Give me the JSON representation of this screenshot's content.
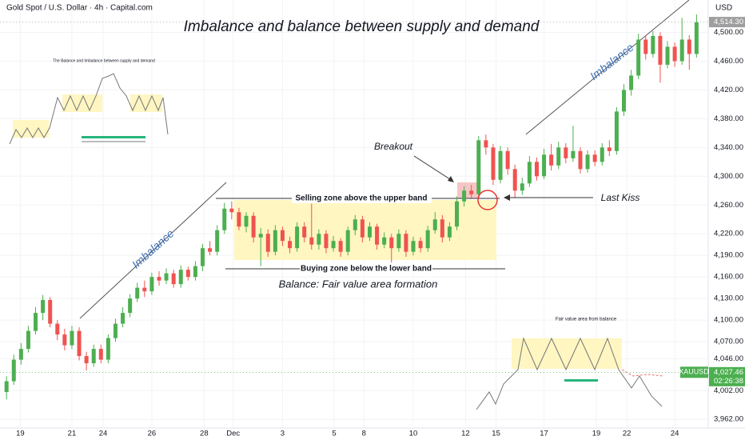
{
  "chart_data": {
    "type": "candlestick",
    "header": "Gold Spot / U.S. Dollar · 4h · Capital.com",
    "currency": "USD",
    "title": "Imbalance and balance between supply and demand",
    "annotations": {
      "selling": "Selling zone above the upper band",
      "buying": "Buying zone below the lower band",
      "balance": "Balance: Fair value area formation",
      "breakout": "Breakout",
      "last_kiss": "Last Kiss",
      "imbalance_1": "Imbalance",
      "imbalance_2": "Imbalance",
      "inset_top": "The Balance and Imbalance between supply and demand",
      "inset_bottom": "Fair value area from balance"
    },
    "up_color": "#4caf50",
    "down_color": "#ef5350",
    "xlim": [
      -0.9,
      96.5
    ],
    "xticks": [
      {
        "value": 1.9,
        "label": "19"
      },
      {
        "value": 9.0,
        "label": "21"
      },
      {
        "value": 13.3,
        "label": "24"
      },
      {
        "value": 20.0,
        "label": "26"
      },
      {
        "value": 27.2,
        "label": "28"
      },
      {
        "value": 31.2,
        "label": "Dec"
      },
      {
        "value": 38.0,
        "label": "3"
      },
      {
        "value": 45.1,
        "label": "5"
      },
      {
        "value": 49.2,
        "label": "8"
      },
      {
        "value": 56.0,
        "label": "10"
      },
      {
        "value": 63.2,
        "label": "12"
      },
      {
        "value": 67.4,
        "label": "15"
      },
      {
        "value": 74.0,
        "label": "17"
      },
      {
        "value": 81.2,
        "label": "19"
      },
      {
        "value": 85.4,
        "label": "22"
      },
      {
        "value": 92.0,
        "label": "24"
      }
    ],
    "ylim": [
      3950,
      4545
    ],
    "yticks": [
      {
        "value": 3962,
        "label": "3,962.00"
      },
      {
        "value": 4002,
        "label": "4,002.00"
      },
      {
        "value": 4046,
        "label": "4,046.00"
      },
      {
        "value": 4070,
        "label": "4,070.00"
      },
      {
        "value": 4100,
        "label": "4,100.00"
      },
      {
        "value": 4130,
        "label": "4,130.00"
      },
      {
        "value": 4160,
        "label": "4,160.00"
      },
      {
        "value": 4190,
        "label": "4,190.00"
      },
      {
        "value": 4220,
        "label": "4,220.00"
      },
      {
        "value": 4260,
        "label": "4,260.00"
      },
      {
        "value": 4300,
        "label": "4,300.00"
      },
      {
        "value": 4340,
        "label": "4,340.00"
      },
      {
        "value": 4380,
        "label": "4,380.00"
      },
      {
        "value": 4420,
        "label": "4,420.00"
      },
      {
        "value": 4460,
        "label": "4,460.00"
      },
      {
        "value": 4500,
        "label": "4,500.00"
      }
    ],
    "price_tags": [
      {
        "value": 4514.3,
        "label": "4,514.30",
        "color": "#9e9e9e"
      },
      {
        "name": "XAUUSD",
        "value": 4027.46,
        "label": "4,027.46",
        "timer": "02:26:38",
        "color": "#4caf50"
      }
    ],
    "candles": {
      "open": [
        4000,
        4015,
        4045,
        4060,
        4085,
        4110,
        4128,
        4095,
        4080,
        4065,
        4085,
        4050,
        4040,
        4060,
        4045,
        4075,
        4095,
        4110,
        4130,
        4145,
        4140,
        4160,
        4155,
        4165,
        4150,
        4170,
        4160,
        4175,
        4200,
        4195,
        4225,
        4255,
        4250,
        4230,
        4245,
        4215,
        4220,
        4195,
        4225,
        4210,
        4200,
        4230,
        4215,
        4205,
        4220,
        4200,
        4210,
        4195,
        4225,
        4240,
        4215,
        4230,
        4205,
        4215,
        4200,
        4220,
        4195,
        4210,
        4200,
        4225,
        4240,
        4215,
        4230,
        4265,
        4280,
        4275,
        4350,
        4340,
        4295,
        4335,
        4310,
        4280,
        4290,
        4320,
        4300,
        4330,
        4315,
        4340,
        4325,
        4335,
        4310,
        4330,
        4320,
        4340,
        4335,
        4390,
        4420,
        4440,
        4490,
        4470,
        4495,
        4455,
        4480,
        4460,
        4490,
        4470
      ],
      "high": [
        4022,
        4052,
        4068,
        4092,
        4118,
        4135,
        4132,
        4100,
        4088,
        4092,
        4090,
        4056,
        4066,
        4066,
        4080,
        4102,
        4118,
        4136,
        4152,
        4155,
        4166,
        4168,
        4172,
        4170,
        4176,
        4174,
        4182,
        4206,
        4210,
        4232,
        4263,
        4265,
        4256,
        4250,
        4250,
        4228,
        4226,
        4232,
        4230,
        4216,
        4236,
        4236,
        4262,
        4226,
        4225,
        4217,
        4214,
        4230,
        4246,
        4245,
        4236,
        4234,
        4222,
        4220,
        4226,
        4225,
        4216,
        4215,
        4231,
        4250,
        4246,
        4236,
        4272,
        4286,
        4288,
        4356,
        4358,
        4345,
        4342,
        4340,
        4316,
        4298,
        4328,
        4326,
        4338,
        4345,
        4348,
        4346,
        4370,
        4340,
        4336,
        4336,
        4346,
        4350,
        4396,
        4428,
        4448,
        4498,
        4496,
        4502,
        4500,
        4488,
        4486,
        4520,
        4496,
        4525
      ],
      "low": [
        3990,
        4010,
        4038,
        4055,
        4080,
        4100,
        4090,
        4072,
        4058,
        4060,
        4044,
        4030,
        4035,
        4040,
        4040,
        4070,
        4090,
        4104,
        4125,
        4132,
        4135,
        4148,
        4150,
        4145,
        4145,
        4155,
        4155,
        4168,
        4190,
        4190,
        4220,
        4240,
        4225,
        4222,
        4208,
        4175,
        4188,
        4190,
        4203,
        4193,
        4195,
        4208,
        4198,
        4198,
        4193,
        4195,
        4188,
        4190,
        4218,
        4208,
        4210,
        4198,
        4200,
        4180,
        4195,
        4188,
        4190,
        4194,
        4195,
        4220,
        4208,
        4210,
        4225,
        4258,
        4268,
        4270,
        4330,
        4288,
        4290,
        4302,
        4270,
        4274,
        4285,
        4294,
        4296,
        4308,
        4310,
        4318,
        4320,
        4304,
        4305,
        4314,
        4315,
        4328,
        4330,
        4384,
        4412,
        4435,
        4462,
        4465,
        4430,
        4450,
        4452,
        4455,
        4448,
        4465
      ],
      "close": [
        4015,
        4045,
        4060,
        4085,
        4110,
        4128,
        4095,
        4080,
        4065,
        4085,
        4050,
        4040,
        4060,
        4045,
        4075,
        4095,
        4110,
        4130,
        4145,
        4140,
        4160,
        4155,
        4165,
        4150,
        4170,
        4160,
        4175,
        4200,
        4195,
        4225,
        4255,
        4250,
        4230,
        4245,
        4215,
        4220,
        4195,
        4225,
        4210,
        4200,
        4230,
        4215,
        4205,
        4220,
        4200,
        4210,
        4195,
        4225,
        4240,
        4215,
        4230,
        4205,
        4215,
        4200,
        4220,
        4195,
        4210,
        4200,
        4225,
        4240,
        4215,
        4230,
        4265,
        4280,
        4275,
        4350,
        4340,
        4295,
        4335,
        4310,
        4280,
        4290,
        4320,
        4300,
        4330,
        4315,
        4340,
        4325,
        4335,
        4310,
        4330,
        4320,
        4340,
        4335,
        4390,
        4420,
        4440,
        4490,
        4470,
        4495,
        4455,
        4480,
        4460,
        4490,
        4470,
        4514
      ]
    }
  }
}
